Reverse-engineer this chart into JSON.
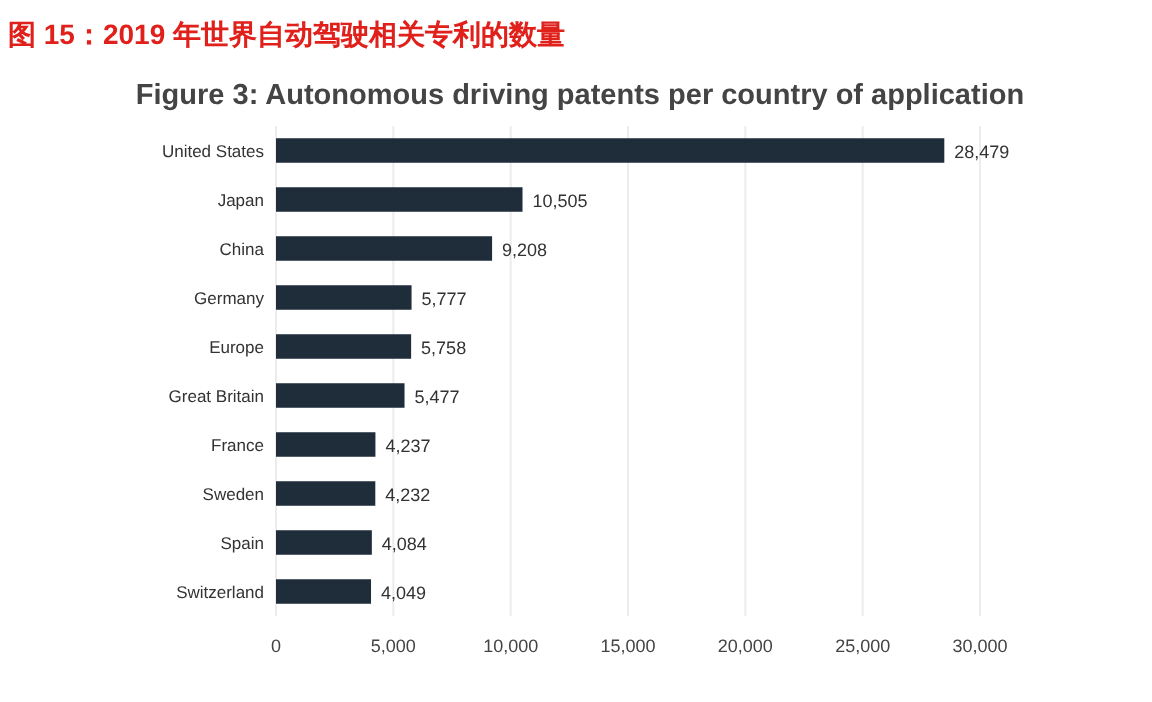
{
  "chart_data": {
    "type": "bar",
    "orientation": "horizontal",
    "title": "图 15：2019 年世界自动驾驶相关专利的数量",
    "subtitle": "Figure 3: Autonomous driving patents per country of application",
    "categories": [
      "United States",
      "Japan",
      "China",
      "Germany",
      "Europe",
      "Great Britain",
      "France",
      "Sweden",
      "Spain",
      "Switzerland"
    ],
    "values": [
      28479,
      10505,
      9208,
      5777,
      5758,
      5477,
      4237,
      4232,
      4084,
      4049
    ],
    "color": "#1f2d3a",
    "xlim": [
      0,
      30000
    ],
    "xticks": [
      0,
      {
        "value": 5000,
        "label": "5,000"
      },
      {
        "value": 10000,
        "label": "10,000"
      },
      {
        "value": 15000,
        "label": "15,000"
      },
      {
        "value": 20000,
        "label": "20,000"
      },
      {
        "value": 25000,
        "label": "25,000"
      },
      {
        "value": 30000,
        "label": "30,000"
      }
    ],
    "grid": "x",
    "value_labels": [
      "28,479",
      "10,505",
      "9,208",
      "5,777",
      "5,758",
      "5,477",
      "4,237",
      "4,232",
      "4,084",
      "4,049"
    ]
  }
}
